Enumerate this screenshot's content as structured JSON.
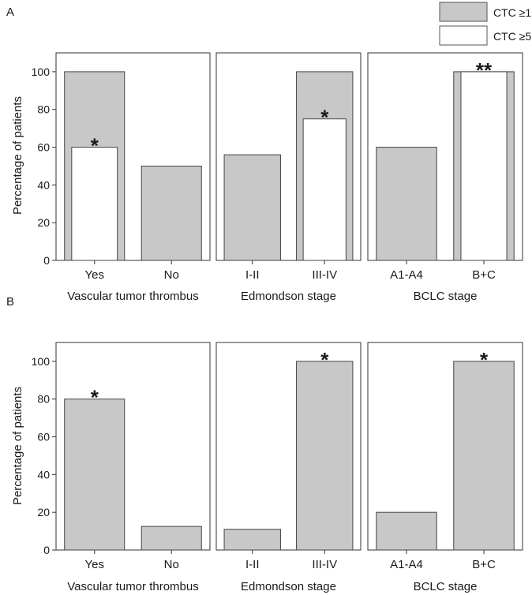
{
  "chart_data": [
    {
      "type": "bar",
      "panel": "A",
      "ylabel": "Percentage of patients",
      "ylim": [
        0,
        110
      ],
      "yticks": [
        "0",
        "20",
        "40",
        "60",
        "80",
        "100"
      ],
      "legend": {
        "placement": "top-right",
        "entries": [
          {
            "label": "CTC ≥1",
            "color": "#c8c8c8"
          },
          {
            "label": "CTC ≥5",
            "color": "#ffffff"
          }
        ]
      },
      "groups": [
        {
          "name": "Vascular tumor thrombus",
          "categories": [
            "Yes",
            "No"
          ],
          "series": [
            {
              "name": "CTC ≥1",
              "values": [
                100,
                50
              ]
            },
            {
              "name": "CTC ≥5",
              "values": [
                60,
                null
              ]
            }
          ],
          "annotations": [
            {
              "category": "Yes",
              "text": "*"
            }
          ]
        },
        {
          "name": "Edmondson stage",
          "categories": [
            "I-II",
            "III-IV"
          ],
          "series": [
            {
              "name": "CTC ≥1",
              "values": [
                56,
                100
              ]
            },
            {
              "name": "CTC ≥5",
              "values": [
                null,
                75
              ]
            }
          ],
          "annotations": [
            {
              "category": "III-IV",
              "text": "*"
            }
          ]
        },
        {
          "name": "BCLC stage",
          "categories": [
            "A1-A4",
            "B+C"
          ],
          "series": [
            {
              "name": "CTC ≥1",
              "values": [
                60,
                100
              ]
            },
            {
              "name": "CTC ≥5",
              "values": [
                null,
                100
              ]
            }
          ],
          "annotations": [
            {
              "category": "B+C",
              "text": "**"
            }
          ]
        }
      ]
    },
    {
      "type": "bar",
      "panel": "B",
      "ylabel": "Percentage of patients",
      "ylim": [
        0,
        110
      ],
      "yticks": [
        "0",
        "20",
        "40",
        "60",
        "80",
        "100"
      ],
      "groups": [
        {
          "name": "Vascular tumor thrombus",
          "categories": [
            "Yes",
            "No"
          ],
          "series": [
            {
              "name": "",
              "values": [
                80,
                12.5
              ]
            }
          ],
          "annotations": [
            {
              "category": "Yes",
              "text": "*"
            }
          ]
        },
        {
          "name": "Edmondson stage",
          "categories": [
            "I-II",
            "III-IV"
          ],
          "series": [
            {
              "name": "",
              "values": [
                11,
                100
              ]
            }
          ],
          "annotations": [
            {
              "category": "III-IV",
              "text": "*"
            }
          ]
        },
        {
          "name": "BCLC stage",
          "categories": [
            "A1-A4",
            "B+C"
          ],
          "series": [
            {
              "name": "",
              "values": [
                20,
                100
              ]
            }
          ],
          "annotations": [
            {
              "category": "B+C",
              "text": "*"
            }
          ]
        }
      ]
    }
  ]
}
